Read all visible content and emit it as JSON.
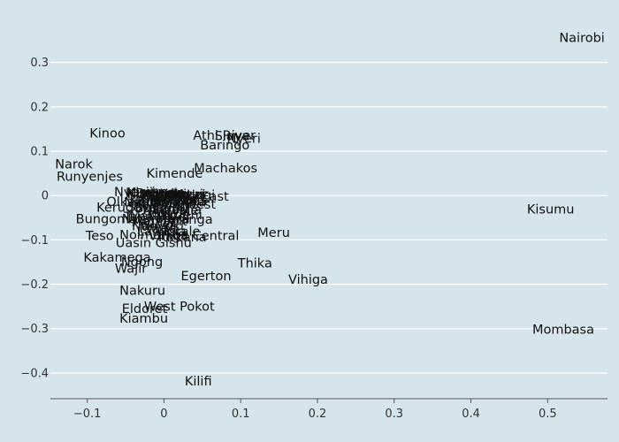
{
  "chart_data": {
    "type": "scatter",
    "title": "",
    "xlabel": "",
    "ylabel": "",
    "xlim": [
      -0.148,
      0.578
    ],
    "ylim": [
      -0.458,
      0.385
    ],
    "xticks": [
      -0.1,
      0,
      0.1,
      0.2,
      0.3,
      0.4,
      0.5
    ],
    "yticks": [
      -0.4,
      -0.3,
      -0.2,
      -0.1,
      0,
      0.1,
      0.2,
      0.3
    ],
    "grid": "horizontal",
    "points": [
      {
        "label": "Nairobi",
        "x": 0.515,
        "y": 0.356
      },
      {
        "label": "Kinoo",
        "x": -0.097,
        "y": 0.141
      },
      {
        "label": "Athi River",
        "x": 0.038,
        "y": 0.136
      },
      {
        "label": "Siaya",
        "x": 0.066,
        "y": 0.135
      },
      {
        "label": "Nyeri",
        "x": 0.082,
        "y": 0.129
      },
      {
        "label": "Baringo",
        "x": 0.047,
        "y": 0.114
      },
      {
        "label": "Narok",
        "x": -0.142,
        "y": 0.071
      },
      {
        "label": "Machakos",
        "x": 0.039,
        "y": 0.062
      },
      {
        "label": "Runyenjes",
        "x": -0.14,
        "y": 0.043
      },
      {
        "label": "Kimende",
        "x": -0.023,
        "y": 0.05
      },
      {
        "label": "Nyamira",
        "x": -0.065,
        "y": 0.008
      },
      {
        "label": "Kisii",
        "x": -0.048,
        "y": 0.007
      },
      {
        "label": "Murang'a",
        "x": -0.05,
        "y": 0.006
      },
      {
        "label": "Kiambaa",
        "x": -0.048,
        "y": 0.003
      },
      {
        "label": "Bomet",
        "x": -0.037,
        "y": 0.005
      },
      {
        "label": "Kericho",
        "x": -0.028,
        "y": 0.002
      },
      {
        "label": "Embu",
        "x": -0.018,
        "y": 0.004
      },
      {
        "label": "Limuru",
        "x": -0.008,
        "y": 0.003
      },
      {
        "label": "Kakuzi",
        "x": 0.0,
        "y": 0.002
      },
      {
        "label": "Mwingi",
        "x": 0.008,
        "y": 0.001
      },
      {
        "label": "Kitui",
        "x": 0.014,
        "y": 0.003
      },
      {
        "label": "Kajiado",
        "x": -0.03,
        "y": -0.005
      },
      {
        "label": "Ruiru",
        "x": -0.022,
        "y": -0.003
      },
      {
        "label": "Juja",
        "x": -0.012,
        "y": -0.004
      },
      {
        "label": "Thika East",
        "x": -0.002,
        "y": -0.002
      },
      {
        "label": "Kangundo",
        "x": -0.045,
        "y": -0.01
      },
      {
        "label": "Kitengela",
        "x": -0.035,
        "y": -0.012
      },
      {
        "label": "Nandi",
        "x": -0.052,
        "y": -0.015
      },
      {
        "label": "Mandera",
        "x": -0.018,
        "y": -0.015
      },
      {
        "label": "Kilgoris",
        "x": -0.005,
        "y": -0.012
      },
      {
        "label": "Olkalou",
        "x": -0.075,
        "y": -0.014
      },
      {
        "label": "Sotik",
        "x": 0.005,
        "y": -0.017
      },
      {
        "label": "Kajiado West",
        "x": -0.04,
        "y": -0.02
      },
      {
        "label": "Samburu",
        "x": -0.048,
        "y": -0.026
      },
      {
        "label": "Kerugoya",
        "x": -0.088,
        "y": -0.027
      },
      {
        "label": "Busia",
        "x": -0.038,
        "y": -0.028
      },
      {
        "label": "Naivasha",
        "x": -0.028,
        "y": -0.032
      },
      {
        "label": "Lamu",
        "x": -0.015,
        "y": -0.03
      },
      {
        "label": "Kwale",
        "x": -0.005,
        "y": -0.034
      },
      {
        "label": "Makueni",
        "x": -0.02,
        "y": -0.043
      },
      {
        "label": "Tana River",
        "x": -0.052,
        "y": -0.047
      },
      {
        "label": "Maralal",
        "x": -0.045,
        "y": -0.045
      },
      {
        "label": "Bungoma",
        "x": -0.115,
        "y": -0.052
      },
      {
        "label": "Nyahururu",
        "x": -0.055,
        "y": -0.052
      },
      {
        "label": "Marsabit",
        "x": -0.042,
        "y": -0.057
      },
      {
        "label": "Muranga",
        "x": -0.01,
        "y": -0.053
      },
      {
        "label": "Isiolo",
        "x": -0.03,
        "y": -0.063
      },
      {
        "label": "Nanyuki",
        "x": -0.042,
        "y": -0.068
      },
      {
        "label": "Mwea",
        "x": -0.032,
        "y": -0.073
      },
      {
        "label": "Kitale",
        "x": 0.0,
        "y": -0.08
      },
      {
        "label": "Laikipia",
        "x": -0.035,
        "y": -0.08
      },
      {
        "label": "Meru",
        "x": 0.122,
        "y": -0.083
      },
      {
        "label": "Teso",
        "x": -0.102,
        "y": -0.09
      },
      {
        "label": "Nolmarkoe",
        "x": -0.058,
        "y": -0.088
      },
      {
        "label": "Vihiga Central",
        "x": -0.02,
        "y": -0.09
      },
      {
        "label": "Turkana",
        "x": -0.01,
        "y": -0.093
      },
      {
        "label": "Uasin Gishu",
        "x": -0.063,
        "y": -0.106
      },
      {
        "label": "Kisumu",
        "x": 0.473,
        "y": -0.031
      },
      {
        "label": "Kakamega",
        "x": -0.105,
        "y": -0.139
      },
      {
        "label": "Ngong",
        "x": -0.056,
        "y": -0.149
      },
      {
        "label": "Thika",
        "x": 0.096,
        "y": -0.152
      },
      {
        "label": "Wajir",
        "x": -0.064,
        "y": -0.164
      },
      {
        "label": "Egerton",
        "x": 0.022,
        "y": -0.181
      },
      {
        "label": "Vihiga",
        "x": 0.162,
        "y": -0.189
      },
      {
        "label": "Nakuru",
        "x": -0.058,
        "y": -0.214
      },
      {
        "label": "West Pokot",
        "x": -0.026,
        "y": -0.25
      },
      {
        "label": "Eldoret",
        "x": -0.055,
        "y": -0.255
      },
      {
        "label": "Kiambu",
        "x": -0.058,
        "y": -0.277
      },
      {
        "label": "Mombasa",
        "x": 0.48,
        "y": -0.302
      },
      {
        "label": "Kilifi",
        "x": 0.027,
        "y": -0.418
      }
    ]
  }
}
